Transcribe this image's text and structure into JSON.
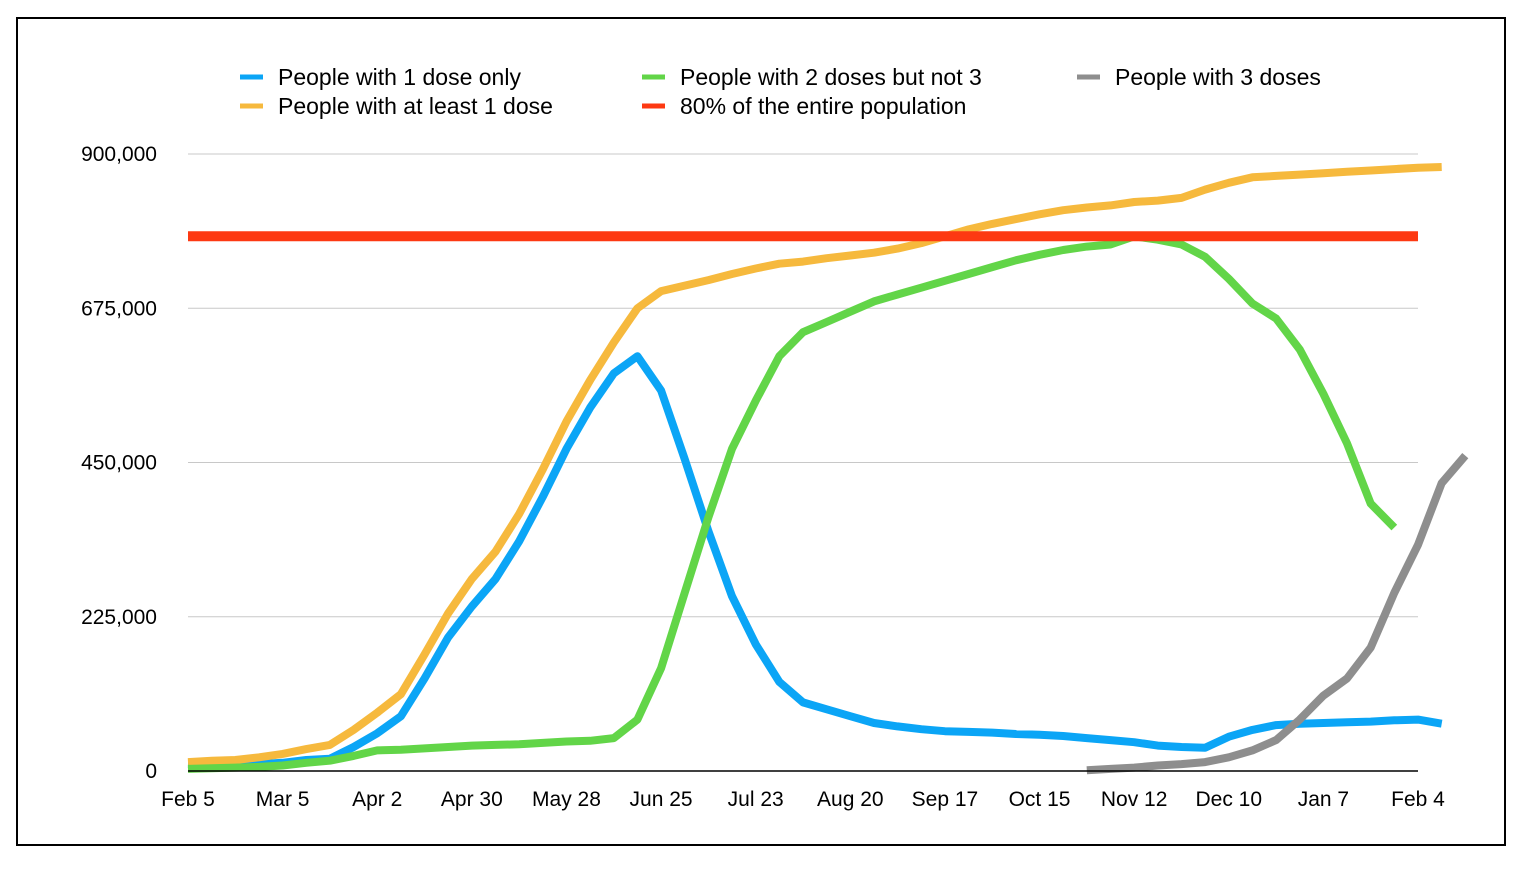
{
  "chart_data": {
    "type": "line",
    "x_ticks": [
      "Feb 5",
      "Mar 5",
      "Apr 2",
      "Apr 30",
      "May 28",
      "Jun 25",
      "Jul 23",
      "Aug 20",
      "Sep 17",
      "Oct 15",
      "Nov 12",
      "Dec 10",
      "Jan 7",
      "Feb 4"
    ],
    "y_ticks": [
      "0",
      "225,000",
      "450,000",
      "675,000",
      "900,000"
    ],
    "ylim": [
      0,
      900000
    ],
    "grid": true,
    "legend_position": "top",
    "series": [
      {
        "name": "People with 1 dose only",
        "color": "#0ba5f6",
        "x_start_week": 0,
        "values": [
          10000,
          9000,
          8000,
          10000,
          12000,
          16000,
          18000,
          35000,
          55000,
          80000,
          135000,
          195000,
          240000,
          280000,
          335000,
          400000,
          470000,
          530000,
          580000,
          605000,
          555000,
          455000,
          350000,
          255000,
          185000,
          130000,
          100000,
          90000,
          80000,
          70000,
          65000,
          61000,
          58000,
          57000,
          56000,
          54000,
          53000,
          51000,
          48000,
          45000,
          42000,
          37000,
          35000,
          34000,
          50000,
          60000,
          67000,
          69000,
          70000,
          71000,
          72000,
          74000,
          75000,
          69000
        ]
      },
      {
        "name": "People with 2 doses but not 3",
        "color": "#62d548",
        "x_start_week": 0,
        "values": [
          3000,
          4000,
          5000,
          6000,
          8000,
          12000,
          15000,
          22000,
          30000,
          31000,
          33000,
          35000,
          37000,
          38000,
          39000,
          41000,
          43000,
          44000,
          48000,
          75000,
          150000,
          260000,
          370000,
          470000,
          540000,
          605000,
          640000,
          655000,
          670000,
          685000,
          695000,
          705000,
          715000,
          725000,
          735000,
          745000,
          753000,
          760000,
          765000,
          768000,
          780000,
          775000,
          768000,
          750000,
          718000,
          682000,
          660000,
          615000,
          550000,
          478000,
          390000,
          355000
        ]
      },
      {
        "name": "People with 3 doses",
        "color": "#8e8e8e",
        "x_start_week": 38,
        "values": [
          1000,
          3000,
          5000,
          8000,
          10000,
          13000,
          20000,
          30000,
          45000,
          75000,
          110000,
          135000,
          180000,
          260000,
          330000,
          420000,
          460000
        ]
      },
      {
        "name": "People with at least 1 dose",
        "color": "#f6b93d",
        "x_start_week": 0,
        "values": [
          13000,
          15000,
          16000,
          20000,
          25000,
          32000,
          38000,
          60000,
          85000,
          112000,
          170000,
          230000,
          280000,
          320000,
          375000,
          440000,
          510000,
          570000,
          625000,
          675000,
          700000,
          708000,
          716000,
          725000,
          733000,
          740000,
          743000,
          748000,
          752000,
          756000,
          762000,
          770000,
          780000,
          790000,
          798000,
          805000,
          812000,
          818000,
          822000,
          825000,
          830000,
          832000,
          836000,
          848000,
          858000,
          866000,
          868000,
          870000,
          872000,
          874000,
          876000,
          878000,
          880000,
          881000
        ]
      },
      {
        "name": "80% of the entire population",
        "color": "#fd3912",
        "x_start_week": 0,
        "values": [
          780000,
          780000
        ]
      }
    ]
  }
}
